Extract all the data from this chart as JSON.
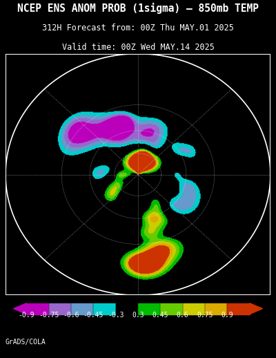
{
  "title_line1": "NCEP ENS ANOM PROB (1sigma) – 850mb TEMP",
  "title_line2": "312H Forecast from: 00Z Thu MAY.01 2025",
  "title_line3": "Valid time: 00Z Wed MAY.14 2025",
  "colorbar_labels": [
    "-0.9",
    "-0.75",
    "-0.6",
    "-0.45",
    "-0.3",
    "0.3",
    "0.45",
    "0.6",
    "0.75",
    "0.9"
  ],
  "colorbar_colors": [
    "#bb00bb",
    "#9966cc",
    "#6699cc",
    "#00cccc",
    "#000000",
    "#00bb00",
    "#66cc00",
    "#cccc00",
    "#ddaa00",
    "#cc3300"
  ],
  "colorbar_arrow_left": "#bb00bb",
  "colorbar_arrow_right": "#cc3300",
  "background_color": "#000000",
  "map_bg": "#000000",
  "map_border_color": "#ffffff",
  "grid_color": "#888888",
  "coast_color": "#ffffff",
  "credit": "GrADS/COLA",
  "title_color": "#ffffff",
  "title_fontsize": 10.5,
  "subtitle_fontsize": 8.5,
  "fig_width": 4.0,
  "fig_height": 5.18,
  "dpi": 100
}
